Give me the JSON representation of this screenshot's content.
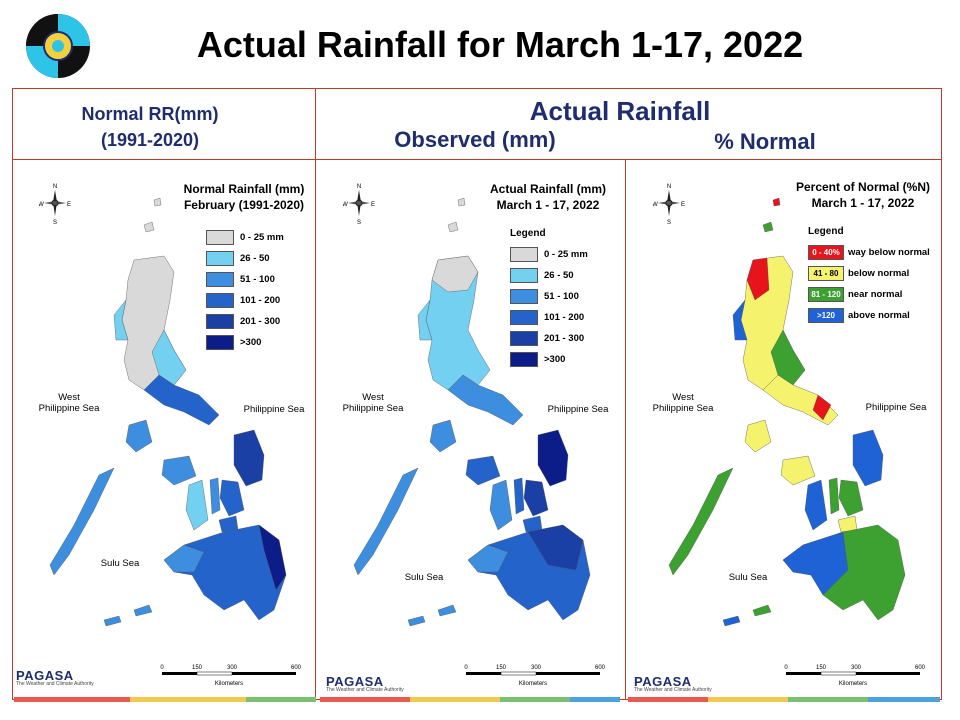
{
  "slide": {
    "title": "Actual Rainfall for March 1-17, 2022"
  },
  "headers": {
    "normal_line1": "Normal RR(mm)",
    "normal_line2": "(1991-2020)",
    "actual": "Actual Rainfall",
    "observed": "Observed (mm)",
    "percent": "% Normal"
  },
  "panels": [
    {
      "title_line1": "Normal Rainfall (mm)",
      "title_line2": "February (1991-2020)",
      "legend_title": "",
      "legend": [
        {
          "label": "0 - 25 mm",
          "color": "#d9d9d9"
        },
        {
          "label": "26 - 50",
          "color": "#74d0f1"
        },
        {
          "label": "51 - 100",
          "color": "#3e8ee0"
        },
        {
          "label": "101 - 200",
          "color": "#2463c9"
        },
        {
          "label": "201 - 300",
          "color": "#1a3fa5"
        },
        {
          "label": ">300",
          "color": "#0c1d8a"
        }
      ]
    },
    {
      "title_line1": "Actual Rainfall (mm)",
      "title_line2": "March 1 - 17, 2022",
      "legend_title": "Legend",
      "legend": [
        {
          "label": "0 - 25 mm",
          "color": "#d9d9d9"
        },
        {
          "label": "26 - 50",
          "color": "#74d0f1"
        },
        {
          "label": "51 - 100",
          "color": "#3e8ee0"
        },
        {
          "label": "101 - 200",
          "color": "#2463c9"
        },
        {
          "label": "201 - 300",
          "color": "#1a3fa5"
        },
        {
          "label": ">300",
          "color": "#0c1d8a"
        }
      ]
    },
    {
      "title_line1": "Percent of Normal (%N)",
      "title_line2": "March 1 - 17, 2022",
      "legend_title": "Legend",
      "legend": [
        {
          "label": "way below normal",
          "range": "0 - 40%",
          "color": "#e8141b"
        },
        {
          "label": "below normal",
          "range": "41 - 80",
          "color": "#f5f36e"
        },
        {
          "label": "near normal",
          "range": "81 - 120",
          "color": "#3da131"
        },
        {
          "label": "above normal",
          "range": ">120",
          "color": "#1f62d6"
        }
      ]
    }
  ],
  "map_labels": {
    "west_line1": "West",
    "west_line2": "Philippine Sea",
    "east": "Philippine Sea",
    "sulu": "Sulu Sea",
    "north": "N",
    "south": "S",
    "east_dir": "E",
    "west_dir": "W"
  },
  "scale": {
    "ticks": [
      "0",
      "150",
      "300",
      "600"
    ],
    "unit": "Kilometers"
  },
  "footer": {
    "brand": "PAGASA",
    "tagline": "The Weather and Climate Authority",
    "colors": [
      "#e85a4f",
      "#f2c94c",
      "#7ac070",
      "#4aa3df"
    ]
  }
}
